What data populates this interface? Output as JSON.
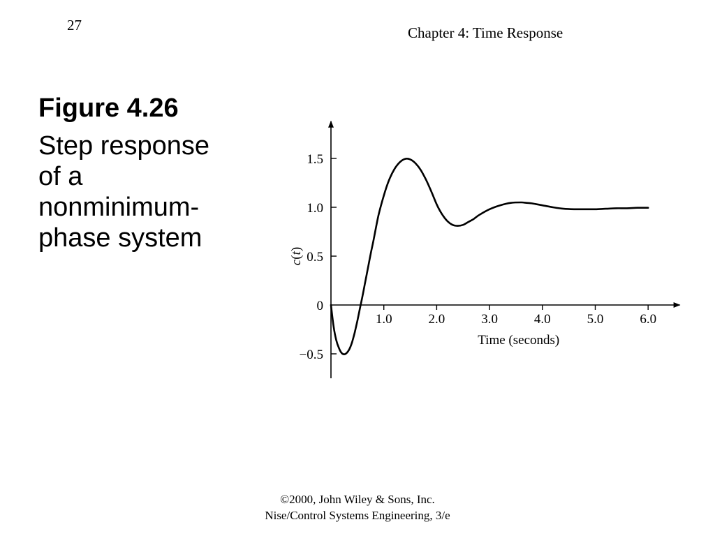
{
  "page_number": "27",
  "chapter_title": "Chapter 4: Time Response",
  "figure_label": "Figure 4.26",
  "figure_caption_lines": [
    "Step response",
    "of a",
    "nonminimum-",
    "phase system"
  ],
  "footer": {
    "line1": "©2000, John Wiley & Sons, Inc.",
    "line2": "Nise/Control Systems Engineering, 3/e"
  },
  "chart_data": {
    "type": "line",
    "title": "",
    "xlabel": "Time (seconds)",
    "ylabel": "c(t)",
    "xlim": [
      0,
      6.6
    ],
    "ylim": [
      -0.75,
      1.88
    ],
    "x_ticks": [
      1.0,
      2.0,
      3.0,
      4.0,
      5.0,
      6.0
    ],
    "x_tick_labels": [
      "1.0",
      "2.0",
      "3.0",
      "4.0",
      "5.0",
      "6.0"
    ],
    "y_ticks": [
      -0.5,
      0,
      0.5,
      1.0,
      1.5
    ],
    "y_tick_labels": [
      "−0.5",
      "0",
      "0.5",
      "1.0",
      "1.5"
    ],
    "grid": false,
    "color": "#000000",
    "series": [
      {
        "x": [
          0,
          0.05,
          0.1,
          0.15,
          0.2,
          0.25,
          0.3,
          0.35,
          0.4,
          0.45,
          0.5,
          0.55,
          0.6,
          0.65,
          0.7,
          0.75,
          0.8,
          0.9,
          1.0,
          1.1,
          1.2,
          1.3,
          1.4,
          1.5,
          1.6,
          1.7,
          1.8,
          1.9,
          2.0,
          2.1,
          2.2,
          2.3,
          2.4,
          2.5,
          2.6,
          2.7,
          2.8,
          3.0,
          3.2,
          3.4,
          3.6,
          3.7,
          3.8,
          4.0,
          4.2,
          4.4,
          4.6,
          4.8,
          5.0,
          5.2,
          5.4,
          5.6,
          5.8,
          6.0
        ],
        "y": [
          0,
          -0.22,
          -0.36,
          -0.44,
          -0.49,
          -0.505,
          -0.49,
          -0.45,
          -0.38,
          -0.28,
          -0.16,
          -0.03,
          0.1,
          0.24,
          0.38,
          0.52,
          0.65,
          0.92,
          1.12,
          1.28,
          1.39,
          1.46,
          1.495,
          1.49,
          1.45,
          1.38,
          1.28,
          1.16,
          1.03,
          0.93,
          0.86,
          0.82,
          0.81,
          0.82,
          0.85,
          0.88,
          0.92,
          0.98,
          1.02,
          1.045,
          1.05,
          1.045,
          1.04,
          1.02,
          1.0,
          0.985,
          0.98,
          0.98,
          0.98,
          0.985,
          0.99,
          0.99,
          0.995,
          0.995
        ]
      }
    ]
  }
}
